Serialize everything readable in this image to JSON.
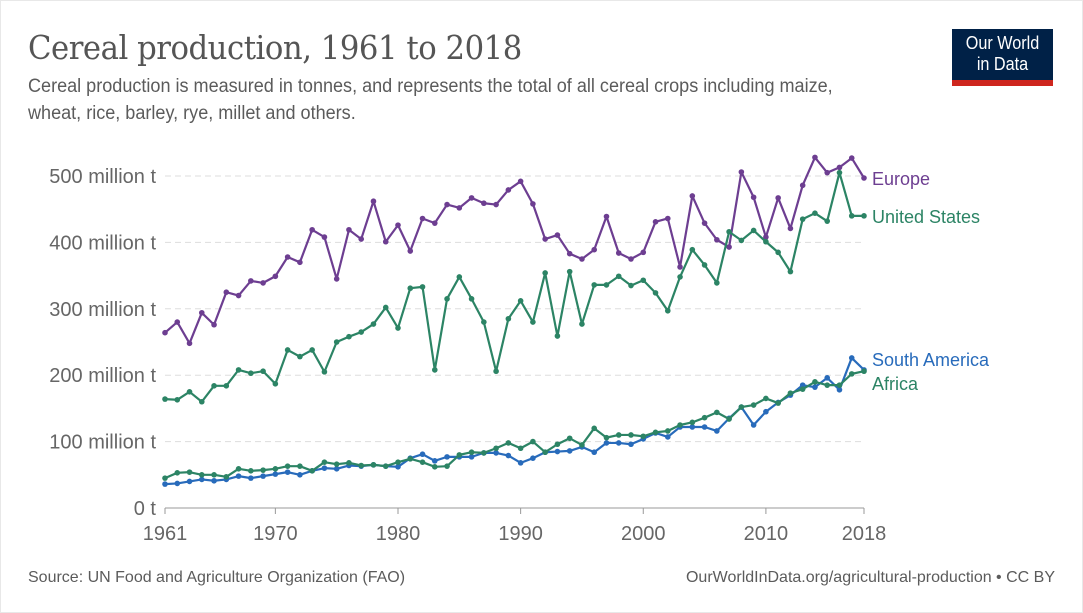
{
  "header": {
    "title": "Cereal production, 1961 to 2018",
    "subtitle": "Cereal production is measured in tonnes, and represents the total of all cereal crops including maize, wheat, rice, barley, rye, millet and others.",
    "logo_line1": "Our World",
    "logo_line2": "in Data"
  },
  "footer": {
    "source": "Source: UN Food and Agriculture Organization (FAO)",
    "url": "OurWorldInData.org/agricultural-production • CC BY"
  },
  "colors": {
    "logo_bg": "#002147",
    "logo_accent": "#ce261e"
  },
  "chart_data": {
    "type": "line",
    "title": "Cereal production, 1961 to 2018",
    "xlabel": "",
    "ylabel": "",
    "xlim": [
      1961,
      2018
    ],
    "ylim": [
      0,
      500
    ],
    "y_unit": "million t",
    "grid": true,
    "legend": "right (inline labels at line ends)",
    "x_ticks": [
      1961,
      1970,
      1980,
      1990,
      2000,
      2010,
      2018
    ],
    "x_tick_labels": [
      "1961",
      "1970",
      "1980",
      "1990",
      "2000",
      "2010",
      "2018"
    ],
    "y_ticks": [
      0,
      100,
      200,
      300,
      400,
      500
    ],
    "y_tick_labels": [
      "0 t",
      "100 million t",
      "200 million t",
      "300 million t",
      "400 million t",
      "500 million t"
    ],
    "x": [
      1961,
      1962,
      1963,
      1964,
      1965,
      1966,
      1967,
      1968,
      1969,
      1970,
      1971,
      1972,
      1973,
      1974,
      1975,
      1976,
      1977,
      1978,
      1979,
      1980,
      1981,
      1982,
      1983,
      1984,
      1985,
      1986,
      1987,
      1988,
      1989,
      1990,
      1991,
      1992,
      1993,
      1994,
      1995,
      1996,
      1997,
      1998,
      1999,
      2000,
      2001,
      2002,
      2003,
      2004,
      2005,
      2006,
      2007,
      2008,
      2009,
      2010,
      2011,
      2012,
      2013,
      2014,
      2015,
      2016,
      2017,
      2018
    ],
    "series": [
      {
        "name": "Europe",
        "color": "#6d3e91",
        "values": [
          264,
          280,
          248,
          294,
          276,
          325,
          320,
          342,
          339,
          349,
          378,
          370,
          419,
          408,
          345,
          419,
          405,
          462,
          401,
          426,
          387,
          436,
          429,
          457,
          452,
          467,
          459,
          457,
          479,
          492,
          458,
          405,
          411,
          383,
          375,
          389,
          439,
          384,
          375,
          385,
          431,
          436,
          363,
          470,
          429,
          404,
          393,
          506,
          468,
          408,
          467,
          421,
          486,
          528,
          505,
          513,
          527,
          497
        ]
      },
      {
        "name": "United States",
        "color": "#2c8465",
        "values": [
          164,
          163,
          175,
          160,
          184,
          184,
          208,
          203,
          206,
          187,
          238,
          228,
          238,
          205,
          250,
          258,
          265,
          277,
          302,
          271,
          331,
          333,
          208,
          315,
          348,
          315,
          280,
          206,
          285,
          312,
          280,
          354,
          259,
          356,
          277,
          336,
          336,
          349,
          335,
          343,
          324,
          297,
          348,
          389,
          366,
          339,
          416,
          403,
          418,
          401,
          385,
          356,
          435,
          444,
          432,
          505,
          440,
          440
        ]
      },
      {
        "name": "South America",
        "color": "#286bbb",
        "values": [
          36,
          37,
          40,
          43,
          41,
          43,
          48,
          45,
          48,
          51,
          54,
          50,
          56,
          60,
          59,
          64,
          63,
          65,
          63,
          62,
          75,
          81,
          71,
          77,
          77,
          77,
          83,
          83,
          79,
          68,
          75,
          84,
          85,
          86,
          92,
          84,
          98,
          98,
          96,
          104,
          113,
          107,
          122,
          122,
          122,
          116,
          135,
          152,
          125,
          145,
          159,
          170,
          185,
          182,
          196,
          178,
          226,
          208
        ]
      },
      {
        "name": "Africa",
        "color": "#2c8465",
        "values": [
          45,
          53,
          54,
          50,
          50,
          47,
          59,
          56,
          57,
          59,
          63,
          63,
          56,
          69,
          66,
          68,
          64,
          65,
          63,
          69,
          74,
          69,
          62,
          63,
          80,
          84,
          83,
          90,
          98,
          90,
          100,
          84,
          96,
          105,
          95,
          120,
          106,
          110,
          110,
          108,
          114,
          116,
          125,
          129,
          136,
          144,
          134,
          152,
          155,
          165,
          158,
          173,
          179,
          190,
          185,
          185,
          202,
          206
        ]
      }
    ]
  }
}
